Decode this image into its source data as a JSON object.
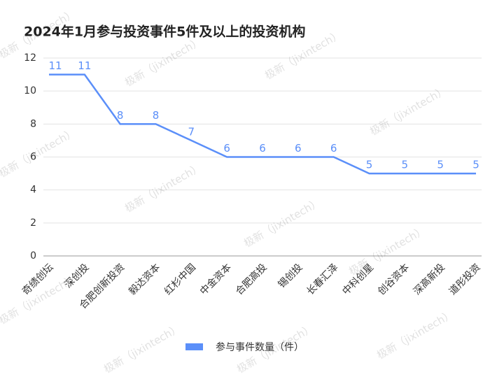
{
  "chart_data": {
    "type": "line",
    "title": "2024年1月参与投资事件5件及以上的投资机构",
    "categories": [
      "奇绩创坛",
      "深创投",
      "合肥创新投资",
      "毅达资本",
      "红杉中国",
      "中金资本",
      "合肥高投",
      "锡创投",
      "长春汇泽",
      "中科创星",
      "创谷资本",
      "深高新投",
      "道彤投资"
    ],
    "series": [
      {
        "name": "参与事件数量（件）",
        "color": "#5b8ff9",
        "values": [
          11,
          11,
          8,
          8,
          7,
          6,
          6,
          6,
          6,
          5,
          5,
          5,
          5
        ]
      }
    ],
    "ylim": [
      0,
      12
    ],
    "yticks": [
      0,
      2,
      4,
      6,
      8,
      10,
      12
    ],
    "grid": true,
    "legend": "bottom",
    "watermark": "极新（jixintech）"
  }
}
